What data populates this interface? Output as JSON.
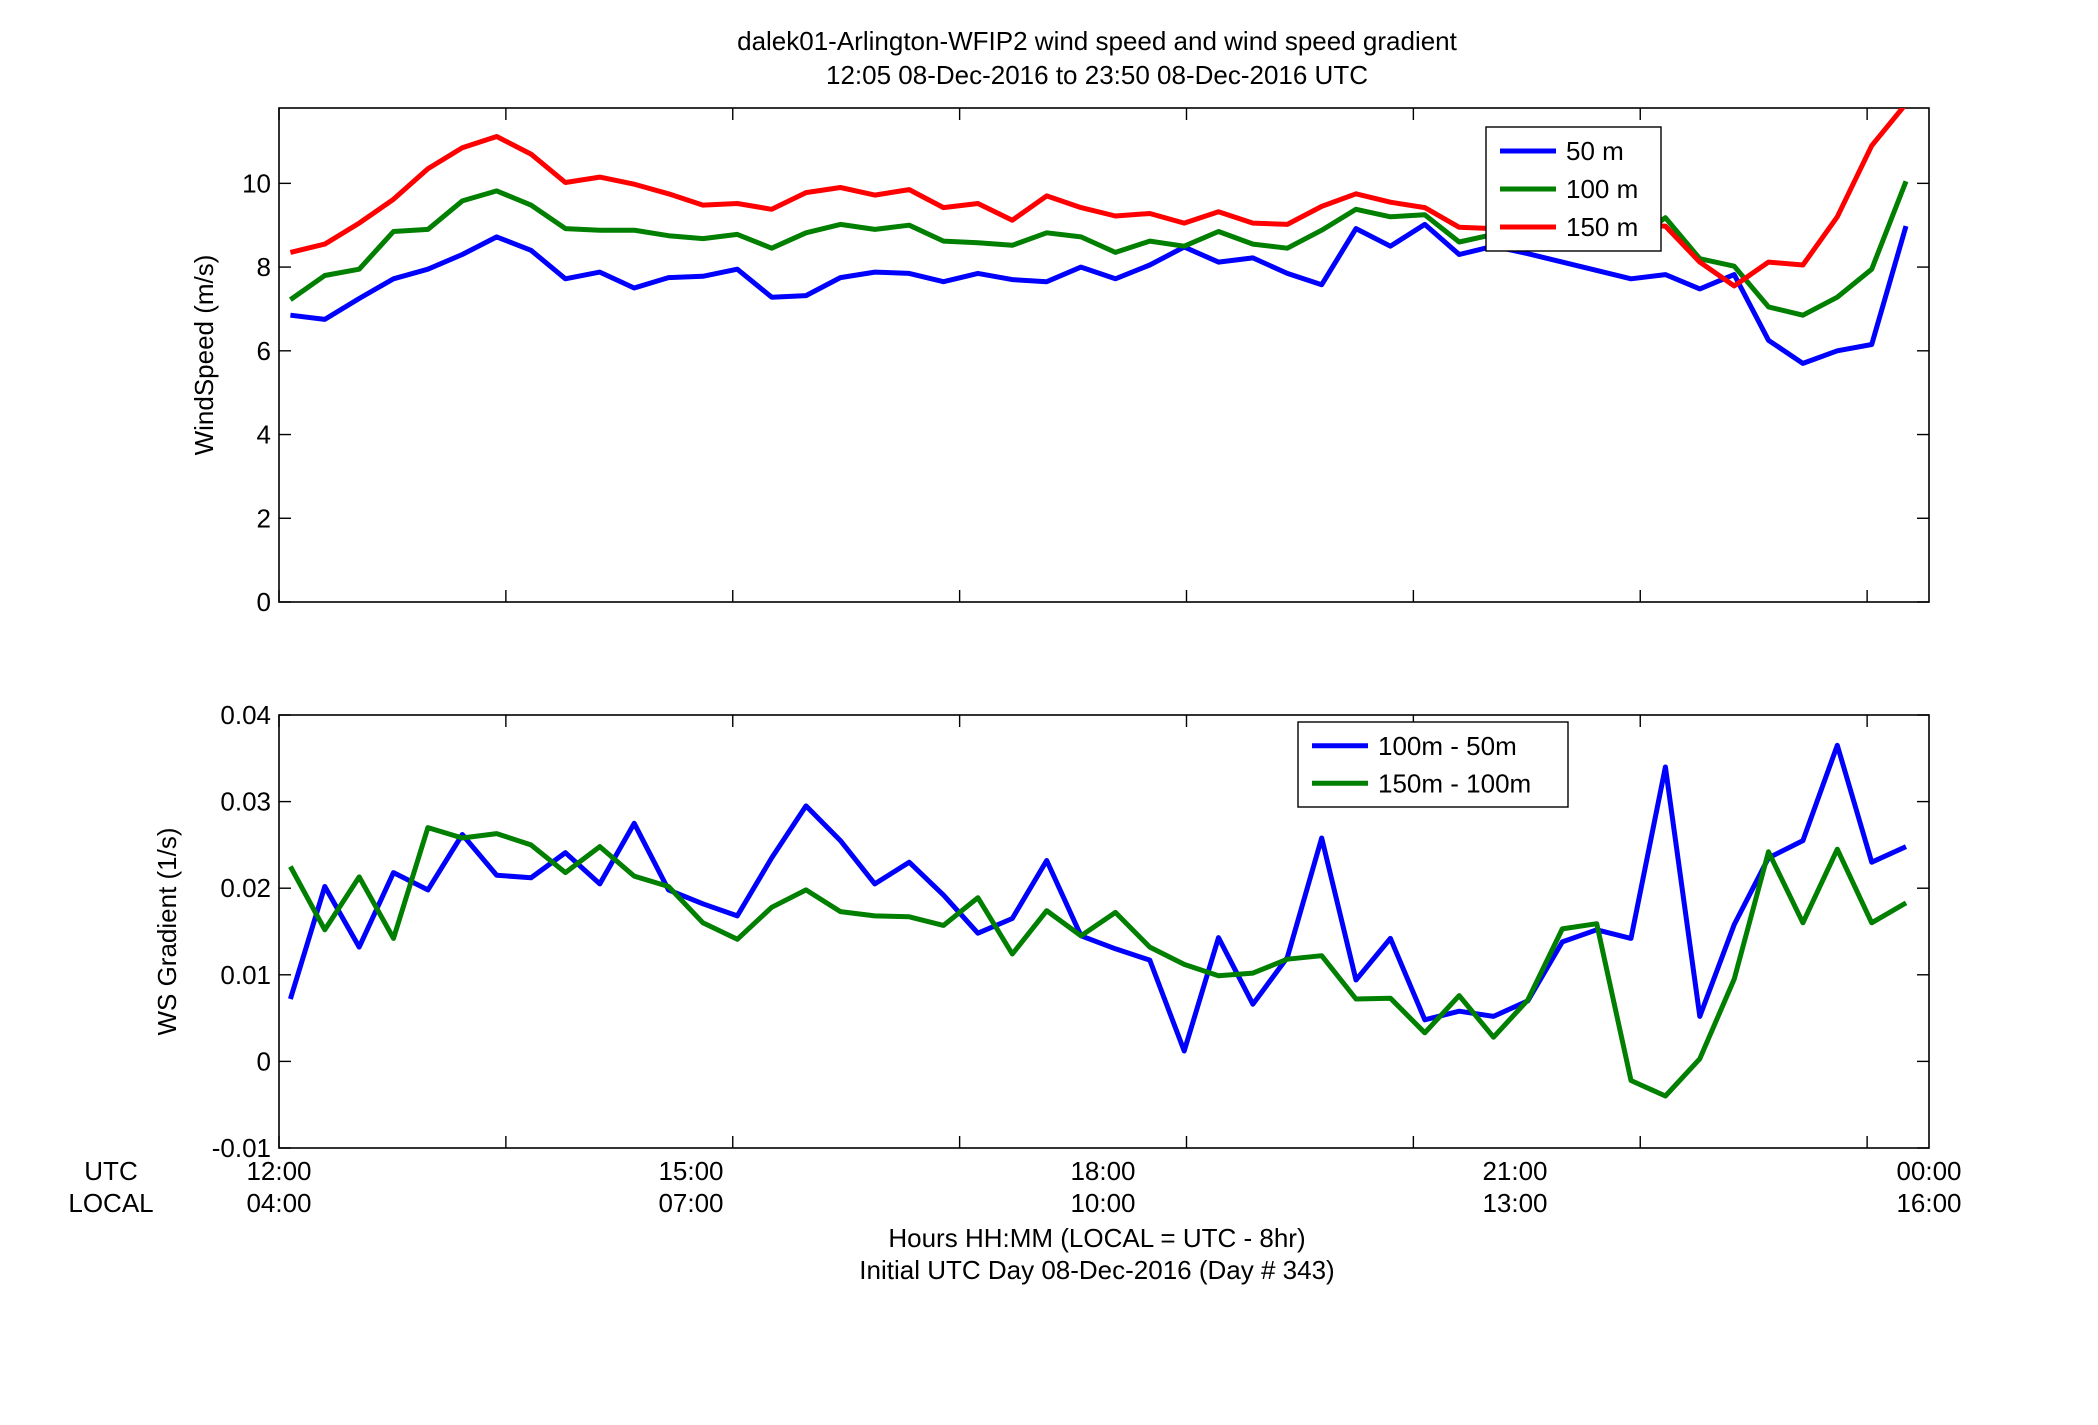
{
  "figure": {
    "title_line1": "dalek01-Arlington-WFIP2  wind speed and wind speed gradient",
    "title_line2": "12:05 08-Dec-2016 to 23:50 08-Dec-2016  UTC",
    "xlabel_line1": "Hours HH:MM  (LOCAL = UTC - 8hr)",
    "xlabel_line2": "Initial UTC Day 08-Dec-2016 (Day # 343)",
    "utc_row_label": "UTC",
    "local_row_label": "LOCAL",
    "utc_ticks": [
      "12:00",
      "15:00",
      "18:00",
      "21:00",
      "00:00"
    ],
    "local_ticks": [
      "04:00",
      "07:00",
      "10:00",
      "13:00",
      "16:00"
    ]
  },
  "chart_data": [
    {
      "type": "line",
      "ylabel": "WindSpeed (m/s)",
      "xlim": [
        12.0,
        24.0
      ],
      "ylim": [
        0,
        11.8
      ],
      "yticks": [
        0,
        2,
        4,
        6,
        8,
        10
      ],
      "ytick_labels": [
        "0",
        "2",
        "4",
        "6",
        "8",
        "10"
      ],
      "legend_position": "top-right",
      "x": [
        12.083,
        12.333,
        12.583,
        12.833,
        13.083,
        13.333,
        13.583,
        13.833,
        14.083,
        14.333,
        14.583,
        14.833,
        15.083,
        15.333,
        15.583,
        15.833,
        16.083,
        16.333,
        16.583,
        16.833,
        17.083,
        17.333,
        17.583,
        17.833,
        18.083,
        18.333,
        18.583,
        18.833,
        19.083,
        19.333,
        19.583,
        19.833,
        20.083,
        20.333,
        20.583,
        20.833,
        21.083,
        21.333,
        21.583,
        21.833,
        22.083,
        22.333,
        22.583,
        22.833,
        23.083,
        23.333,
        23.583,
        23.833
      ],
      "series": [
        {
          "name": "50 m",
          "color": "#0000ff",
          "values": [
            6.85,
            6.75,
            7.25,
            7.72,
            7.95,
            8.3,
            8.72,
            8.4,
            7.72,
            7.88,
            7.5,
            7.75,
            7.78,
            7.95,
            7.28,
            7.32,
            7.75,
            7.88,
            7.85,
            7.65,
            7.85,
            7.7,
            7.65,
            8.0,
            7.72,
            8.05,
            8.48,
            8.12,
            8.22,
            7.85,
            7.58,
            8.92,
            8.5,
            9.02,
            8.3,
            8.5,
            8.32,
            8.12,
            7.92,
            7.72,
            7.82,
            7.48,
            7.82,
            6.25,
            5.7,
            6.0,
            6.15,
            8.98
          ]
        },
        {
          "name": "100 m",
          "color": "#007f00",
          "values": [
            7.22,
            7.8,
            7.95,
            8.85,
            8.9,
            9.58,
            9.82,
            9.48,
            8.92,
            8.88,
            8.88,
            8.75,
            8.68,
            8.78,
            8.45,
            8.82,
            9.02,
            8.9,
            9.0,
            8.62,
            8.58,
            8.52,
            8.82,
            8.72,
            8.35,
            8.62,
            8.5,
            8.85,
            8.55,
            8.45,
            8.88,
            9.38,
            9.2,
            9.25,
            8.6,
            8.78,
            8.82,
            8.6,
            8.5,
            8.6,
            9.18,
            8.2,
            8.02,
            7.05,
            6.85,
            7.28,
            7.95,
            10.05
          ]
        },
        {
          "name": "150 m",
          "color": "#ff0000",
          "values": [
            8.35,
            8.55,
            9.05,
            9.62,
            10.35,
            10.85,
            11.12,
            10.7,
            10.02,
            10.15,
            9.98,
            9.75,
            9.48,
            9.52,
            9.38,
            9.78,
            9.9,
            9.72,
            9.85,
            9.42,
            9.52,
            9.12,
            9.7,
            9.42,
            9.22,
            9.28,
            9.05,
            9.32,
            9.05,
            9.02,
            9.45,
            9.75,
            9.55,
            9.42,
            8.95,
            8.92,
            9.15,
            9.12,
            9.05,
            9.0,
            8.98,
            8.12,
            7.55,
            8.12,
            8.05,
            9.2,
            10.9,
            11.9
          ]
        }
      ]
    },
    {
      "type": "line",
      "ylabel": "WS Gradient (1/s)",
      "xlim": [
        12.0,
        24.0
      ],
      "ylim": [
        -0.01,
        0.04
      ],
      "yticks": [
        -0.01,
        0,
        0.01,
        0.02,
        0.03,
        0.04
      ],
      "ytick_labels": [
        "-0.01",
        "0",
        "0.01",
        "0.02",
        "0.03",
        "0.04"
      ],
      "legend_position": "top-right",
      "x": [
        12.083,
        12.333,
        12.583,
        12.833,
        13.083,
        13.333,
        13.583,
        13.833,
        14.083,
        14.333,
        14.583,
        14.833,
        15.083,
        15.333,
        15.583,
        15.833,
        16.083,
        16.333,
        16.583,
        16.833,
        17.083,
        17.333,
        17.583,
        17.833,
        18.083,
        18.333,
        18.583,
        18.833,
        19.083,
        19.333,
        19.583,
        19.833,
        20.083,
        20.333,
        20.583,
        20.833,
        21.083,
        21.333,
        21.583,
        21.833,
        22.083,
        22.333,
        22.583,
        22.833,
        23.083,
        23.333,
        23.583,
        23.833
      ],
      "series": [
        {
          "name": "100m - 50m",
          "color": "#0000ff",
          "values": [
            0.0072,
            0.0202,
            0.0132,
            0.0218,
            0.0198,
            0.0262,
            0.0215,
            0.0212,
            0.0241,
            0.0205,
            0.0275,
            0.0198,
            0.0182,
            0.0168,
            0.0235,
            0.0295,
            0.0255,
            0.0205,
            0.023,
            0.0192,
            0.0148,
            0.0165,
            0.0232,
            0.0145,
            0.013,
            0.0117,
            0.0012,
            0.0143,
            0.0066,
            0.012,
            0.0258,
            0.0094,
            0.0142,
            0.0048,
            0.0058,
            0.0052,
            0.007,
            0.0138,
            0.0152,
            0.0142,
            0.034,
            0.0052,
            0.0158,
            0.0235,
            0.0255,
            0.0365,
            0.023,
            0.0248
          ]
        },
        {
          "name": "150m - 100m",
          "color": "#007f00",
          "values": [
            0.0225,
            0.0152,
            0.0213,
            0.0142,
            0.027,
            0.0258,
            0.0263,
            0.025,
            0.0218,
            0.0248,
            0.0214,
            0.0202,
            0.016,
            0.0141,
            0.0178,
            0.0198,
            0.0173,
            0.0168,
            0.0167,
            0.0157,
            0.0189,
            0.0124,
            0.0174,
            0.0145,
            0.0172,
            0.0132,
            0.0112,
            0.0099,
            0.0102,
            0.0118,
            0.0122,
            0.0072,
            0.0073,
            0.0033,
            0.0076,
            0.0028,
            0.0071,
            0.0153,
            0.0159,
            -0.0022,
            -0.004,
            0.0003,
            0.0095,
            0.0242,
            0.016,
            0.0245,
            0.016,
            0.0183
          ]
        }
      ]
    }
  ]
}
